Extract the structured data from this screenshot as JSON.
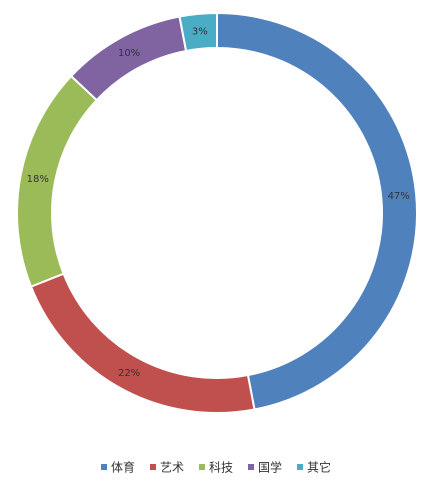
{
  "chart_data": {
    "type": "pie",
    "variant": "doughnut",
    "categories": [
      "体育",
      "艺术",
      "科技",
      "国学",
      "其它"
    ],
    "values": [
      47,
      22,
      18,
      10,
      3
    ],
    "labels": [
      "47%",
      "22%",
      "18%",
      "10%",
      "3%"
    ],
    "colors": [
      "#4f81bd",
      "#c0504d",
      "#9bbb59",
      "#8064a2",
      "#4bacc6"
    ],
    "legend": {
      "position": "bottom"
    }
  }
}
